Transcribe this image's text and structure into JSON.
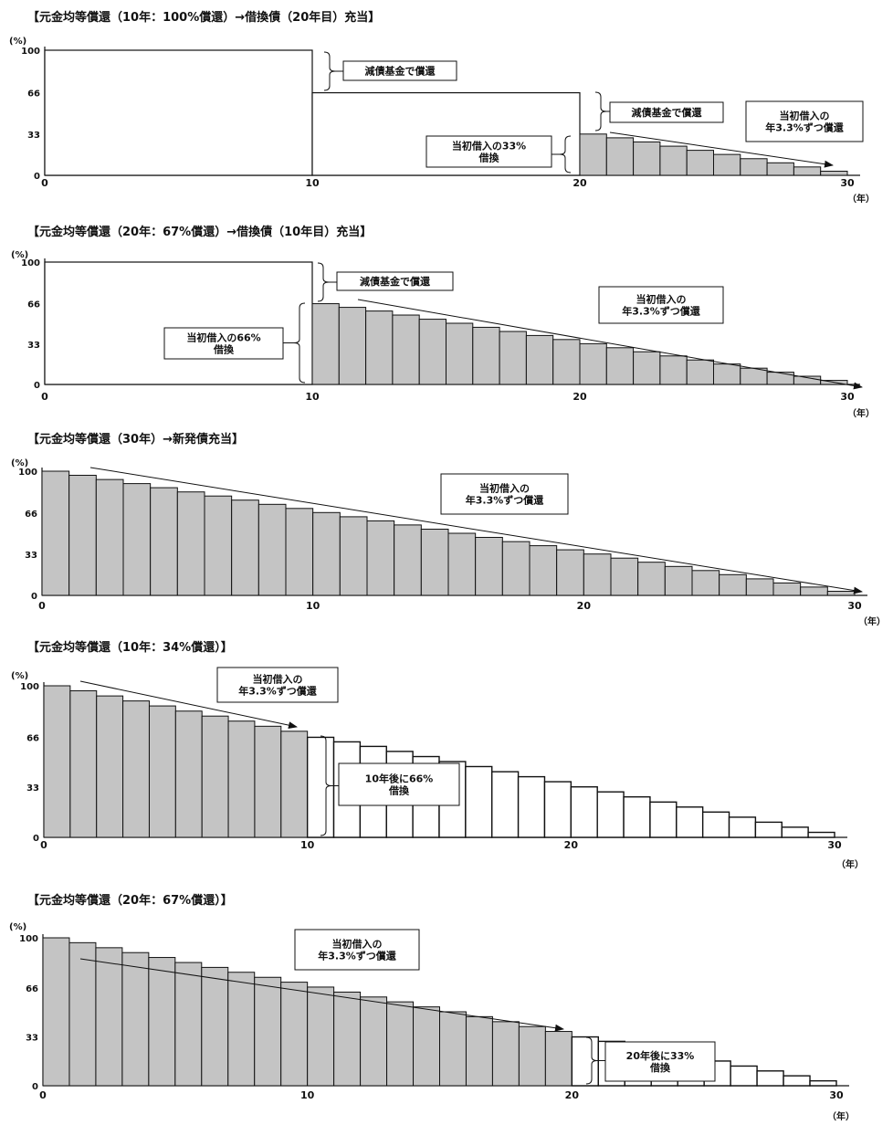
{
  "charts": [
    {
      "title": "【元金均等償還（10年：100%償還）→借換債（20年目）充当】",
      "yunit": "(%)",
      "xunit": "（年）"
    },
    {
      "title": "【元金均等償還（20年：67%償還）→借換債（10年目）充当】",
      "yunit": "(%)",
      "xunit": "（年）"
    },
    {
      "title": "【元金均等償還（30年）→新発債充当】",
      "yunit": "(%)",
      "xunit": "（年）"
    },
    {
      "title": "【元金均等償還（10年：34%償還）】",
      "yunit": "(%)",
      "xunit": "（年）"
    },
    {
      "title": "【元金均等償還（20年：67%償還）】",
      "yunit": "(%)",
      "xunit": "（年）"
    }
  ],
  "chart_data": [
    {
      "type": "bar",
      "title": "【元金均等償還（10年：100%償還）→借換債（20年目）充当】",
      "xlim": [
        0,
        30
      ],
      "ylim": [
        0,
        100
      ],
      "x_ticks": [
        0,
        10,
        20,
        30
      ],
      "y_ticks": [
        0,
        33,
        66,
        100
      ],
      "blocks": [
        {
          "x_from": 0,
          "x_to": 10,
          "y": 100
        },
        {
          "x_from": 10,
          "x_to": 20,
          "y": 66
        }
      ],
      "series": [
        {
          "style": "gray",
          "x": [
            20,
            21,
            22,
            23,
            24,
            25,
            26,
            27,
            28,
            29
          ],
          "values": [
            33,
            30,
            26.7,
            23.3,
            20,
            16.7,
            13.3,
            10,
            6.7,
            3.3
          ]
        }
      ],
      "annotations": [
        {
          "text": [
            "減債基金で償還"
          ]
        },
        {
          "text": [
            "減債基金で償還"
          ]
        },
        {
          "text": [
            "当初借入の33%",
            "借換"
          ]
        },
        {
          "text": [
            "当初借入の",
            "年3.3%ずつ償還"
          ]
        }
      ]
    },
    {
      "type": "bar",
      "title": "【元金均等償還（20年：67%償還）→借換債（10年目）充当】",
      "xlim": [
        0,
        30
      ],
      "ylim": [
        0,
        100
      ],
      "x_ticks": [
        0,
        10,
        20,
        30
      ],
      "y_ticks": [
        0,
        33,
        66,
        100
      ],
      "blocks": [
        {
          "x_from": 0,
          "x_to": 10,
          "y": 100
        }
      ],
      "series": [
        {
          "style": "gray",
          "x": [
            10,
            11,
            12,
            13,
            14,
            15,
            16,
            17,
            18,
            19,
            20,
            21,
            22,
            23,
            24,
            25,
            26,
            27,
            28,
            29
          ],
          "values": [
            66,
            63,
            60,
            56.7,
            53.3,
            50,
            46.7,
            43.3,
            40,
            36.7,
            33.3,
            30,
            26.7,
            23.3,
            20,
            16.7,
            13.3,
            10,
            6.7,
            3.3
          ]
        }
      ],
      "annotations": [
        {
          "text": [
            "減債基金で償還"
          ]
        },
        {
          "text": [
            "当初借入の66%",
            "借換"
          ]
        },
        {
          "text": [
            "当初借入の",
            "年3.3%ずつ償還"
          ]
        }
      ]
    },
    {
      "type": "bar",
      "title": "【元金均等償還（30年）→新発債充当】",
      "xlim": [
        0,
        30
      ],
      "ylim": [
        0,
        100
      ],
      "x_ticks": [
        0,
        10,
        20,
        30
      ],
      "y_ticks": [
        0,
        33,
        66,
        100
      ],
      "blocks": [],
      "series": [
        {
          "style": "gray",
          "x": [
            0,
            1,
            2,
            3,
            4,
            5,
            6,
            7,
            8,
            9,
            10,
            11,
            12,
            13,
            14,
            15,
            16,
            17,
            18,
            19,
            20,
            21,
            22,
            23,
            24,
            25,
            26,
            27,
            28,
            29
          ],
          "values": [
            100,
            96.7,
            93.3,
            90,
            86.7,
            83.3,
            80,
            76.7,
            73.3,
            70,
            66.7,
            63.3,
            60,
            56.7,
            53.3,
            50,
            46.7,
            43.3,
            40,
            36.7,
            33.3,
            30,
            26.7,
            23.3,
            20,
            16.7,
            13.3,
            10,
            6.7,
            3.3
          ]
        }
      ],
      "annotations": [
        {
          "text": [
            "当初借入の",
            "年3.3%ずつ償還"
          ]
        }
      ]
    },
    {
      "type": "bar",
      "title": "【元金均等償還（10年：34%償還）】",
      "xlim": [
        0,
        30
      ],
      "ylim": [
        0,
        100
      ],
      "x_ticks": [
        0,
        10,
        20,
        30
      ],
      "y_ticks": [
        0,
        33,
        66,
        100
      ],
      "blocks": [],
      "series": [
        {
          "style": "gray",
          "x": [
            0,
            1,
            2,
            3,
            4,
            5,
            6,
            7,
            8,
            9
          ],
          "values": [
            100,
            96.7,
            93.3,
            90,
            86.7,
            83.3,
            80,
            76.7,
            73.3,
            70
          ]
        },
        {
          "style": "white",
          "x": [
            10,
            11,
            12,
            13,
            14,
            15,
            16,
            17,
            18,
            19,
            20,
            21,
            22,
            23,
            24,
            25,
            26,
            27,
            28,
            29
          ],
          "values": [
            66,
            63,
            60,
            56.7,
            53.3,
            50,
            46.7,
            43.3,
            40,
            36.7,
            33.3,
            30,
            26.7,
            23.3,
            20,
            16.7,
            13.3,
            10,
            6.7,
            3.3
          ]
        }
      ],
      "annotations": [
        {
          "text": [
            "当初借入の",
            "年3.3%ずつ償還"
          ]
        },
        {
          "text": [
            "10年後に66%",
            "借換"
          ]
        }
      ]
    },
    {
      "type": "bar",
      "title": "【元金均等償還（20年：67%償還）】",
      "xlim": [
        0,
        30
      ],
      "ylim": [
        0,
        100
      ],
      "x_ticks": [
        0,
        10,
        20,
        30
      ],
      "y_ticks": [
        0,
        33,
        66,
        100
      ],
      "blocks": [],
      "series": [
        {
          "style": "gray",
          "x": [
            0,
            1,
            2,
            3,
            4,
            5,
            6,
            7,
            8,
            9,
            10,
            11,
            12,
            13,
            14,
            15,
            16,
            17,
            18,
            19
          ],
          "values": [
            100,
            96.7,
            93.3,
            90,
            86.7,
            83.3,
            80,
            76.7,
            73.3,
            70,
            66.7,
            63.3,
            60,
            56.7,
            53.3,
            50,
            46.7,
            43.3,
            40,
            36.7
          ]
        },
        {
          "style": "white",
          "x": [
            20,
            21,
            22,
            23,
            24,
            25,
            26,
            27,
            28,
            29
          ],
          "values": [
            33,
            30,
            26.7,
            23.3,
            20,
            16.7,
            13.3,
            10,
            6.7,
            3.3
          ]
        }
      ],
      "annotations": [
        {
          "text": [
            "当初借入の",
            "年3.3%ずつ償還"
          ]
        },
        {
          "text": [
            "20年後に33%",
            "借換"
          ]
        }
      ]
    }
  ]
}
